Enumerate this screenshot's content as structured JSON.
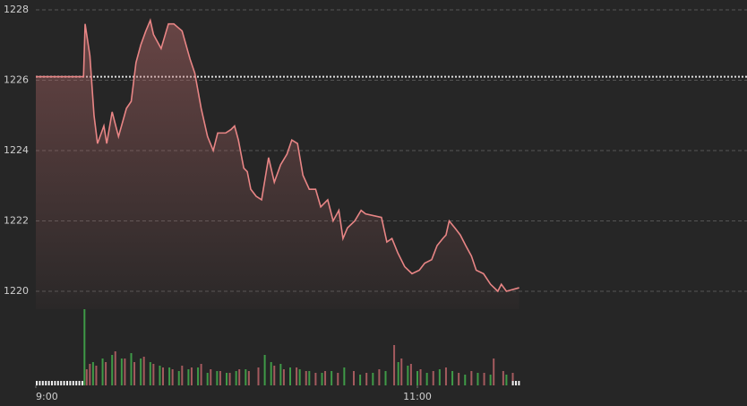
{
  "chart_data": {
    "type": "line",
    "color": "#e88585",
    "ref_line": 1226.1,
    "grid": true,
    "x": [
      0,
      15,
      15.5,
      17,
      18.3,
      19.4,
      21.4,
      22.3,
      24,
      26,
      28.5,
      30,
      31.5,
      33,
      34.6,
      36,
      37,
      39.4,
      41.7,
      43.4,
      46,
      48.5,
      50,
      52,
      54,
      55.8,
      57.2,
      59.7,
      61.4,
      62.5,
      63.7,
      65.4,
      66.5,
      67.6,
      69.3,
      71,
      73.2,
      75,
      77,
      79,
      80.5,
      82.3,
      84,
      86,
      88,
      89.6,
      91.8,
      93.5,
      95.3,
      96.6,
      98,
      100.3,
      102.3,
      103.7,
      108.7,
      110.4,
      112,
      113.8,
      116,
      118.3,
      120.6,
      122.3,
      124.5,
      126.2,
      128,
      129,
      130,
      131.8,
      133.5,
      135.2,
      137,
      138.5,
      140.8,
      143,
      145.3,
      146.4,
      148,
      152
    ],
    "values": [
      1226.1,
      1226.1,
      1227.6,
      1226.7,
      1225,
      1224.2,
      1224.7,
      1224.2,
      1225.1,
      1224.4,
      1225.2,
      1225.4,
      1226.5,
      1227,
      1227.4,
      1227.7,
      1227.3,
      1226.9,
      1227.6,
      1227.6,
      1227.4,
      1226.6,
      1226.2,
      1225.2,
      1224.4,
      1224,
      1224.5,
      1224.5,
      1224.6,
      1224.7,
      1224.3,
      1223.5,
      1223.4,
      1222.9,
      1222.7,
      1222.6,
      1223.8,
      1223.1,
      1223.6,
      1223.9,
      1224.3,
      1224.2,
      1223.3,
      1222.9,
      1222.9,
      1222.4,
      1222.6,
      1222,
      1222.3,
      1221.5,
      1221.8,
      1222,
      1222.3,
      1222.2,
      1222.1,
      1221.4,
      1221.5,
      1221.1,
      1220.7,
      1220.5,
      1220.6,
      1220.8,
      1220.9,
      1221.3,
      1221.5,
      1221.6,
      1222,
      1221.8,
      1221.6,
      1221.3,
      1221,
      1220.6,
      1220.5,
      1220.2,
      1220,
      1220.2,
      1220,
      1220.1
    ],
    "ylim": [
      1219.6,
      1228.1
    ],
    "yticks": [
      1220,
      1222,
      1224,
      1226,
      1228
    ],
    "xlim": [
      0,
      223
    ],
    "xticks": [
      {
        "value": 0,
        "label": "9:00"
      },
      {
        "value": 120,
        "label": "11:00"
      }
    ],
    "volume": {
      "vlim": [
        0,
        90
      ],
      "series": [
        {
          "color": "#3f9a47",
          "x": [
            15.3,
            18,
            21,
            24,
            27,
            30,
            33,
            36,
            39,
            42,
            45,
            48,
            51,
            54,
            57,
            60,
            63,
            66,
            72,
            74,
            77,
            80,
            83,
            86,
            90,
            93,
            97,
            102,
            106,
            110,
            114,
            117,
            120,
            123,
            127,
            131,
            135,
            139,
            143,
            148
          ],
          "values": [
            85,
            26,
            30,
            34,
            30,
            36,
            30,
            26,
            22,
            20,
            16,
            18,
            20,
            14,
            16,
            14,
            16,
            18,
            34,
            26,
            24,
            20,
            18,
            16,
            14,
            16,
            20,
            12,
            14,
            16,
            26,
            22,
            16,
            14,
            18,
            16,
            12,
            14,
            12,
            12
          ]
        },
        {
          "color": "#a45a5e",
          "x": [
            16,
            17,
            19,
            22,
            25,
            28,
            31,
            34,
            37,
            40,
            43,
            46,
            49,
            52,
            55,
            58,
            61,
            64,
            67,
            70,
            75,
            78,
            82,
            85,
            88,
            91,
            95,
            100,
            104,
            108,
            112.7,
            115,
            118,
            121,
            125,
            129,
            133,
            137,
            141,
            144,
            147,
            150
          ],
          "values": [
            18,
            24,
            22,
            26,
            38,
            30,
            26,
            32,
            24,
            20,
            18,
            22,
            20,
            24,
            18,
            16,
            14,
            18,
            16,
            20,
            22,
            18,
            20,
            16,
            14,
            16,
            14,
            16,
            14,
            18,
            45,
            30,
            24,
            18,
            16,
            20,
            14,
            16,
            14,
            30,
            16,
            14
          ]
        }
      ]
    }
  }
}
